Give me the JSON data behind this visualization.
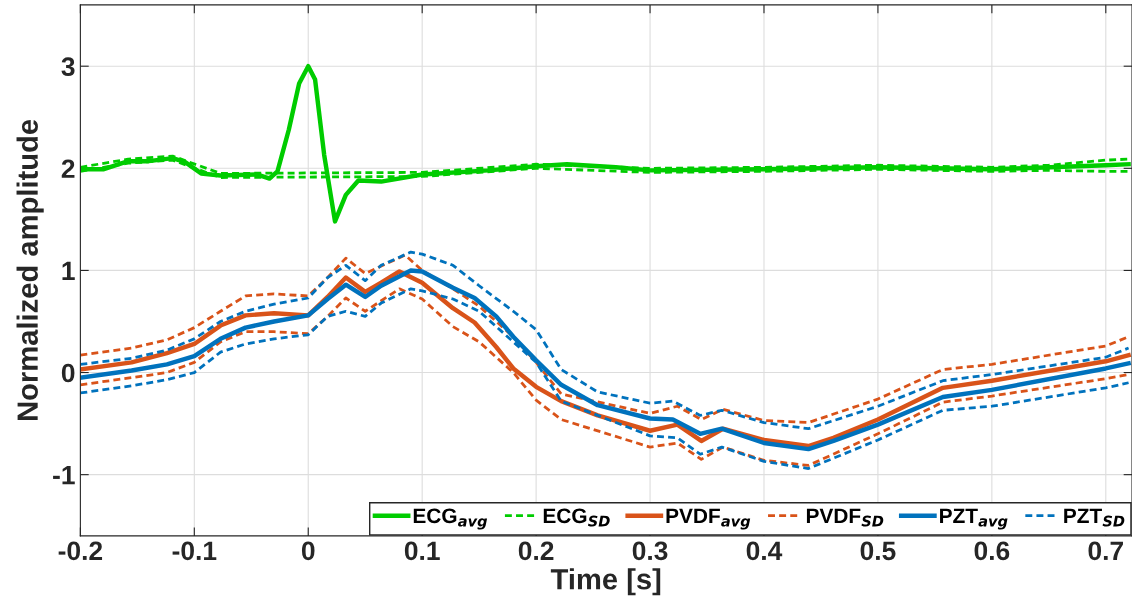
{
  "chart_data": {
    "type": "line",
    "xlabel": "Time [s]",
    "ylabel": "Normalized amplitude",
    "xlim": [
      -0.2,
      0.723
    ],
    "ylim": [
      -1.6,
      3.6
    ],
    "xticks": [
      {
        "value": -0.2,
        "label": "-0.2"
      },
      {
        "value": -0.1,
        "label": "-0.1"
      },
      0,
      0.1,
      0.2,
      0.3,
      0.4,
      0.5,
      0.6,
      0.7
    ],
    "yticks": [
      {
        "value": -1,
        "label": "-1"
      },
      0,
      1,
      2,
      3
    ],
    "grid": true,
    "legend": "bottom right",
    "marker": "none",
    "series": [
      {
        "name": "ECG$_{avg}$",
        "color": "#00cc00",
        "line_style": "solid",
        "x": [
          -0.2,
          -0.18,
          -0.158,
          -0.14,
          -0.119,
          -0.108,
          -0.094,
          -0.077,
          -0.045,
          -0.034,
          -0.027,
          -0.017,
          -0.008,
          0,
          0.006,
          0.014,
          0.0235,
          0.033,
          0.044,
          0.064,
          0.1,
          0.158,
          0.2,
          0.227,
          0.27,
          0.3,
          0.4,
          0.5,
          0.6,
          0.7,
          0.72
        ],
        "values": [
          1.99,
          1.99,
          2.07,
          2.07,
          2.1,
          2.06,
          1.95,
          1.93,
          1.94,
          1.9,
          1.97,
          2.38,
          2.83,
          3.0,
          2.87,
          2.13,
          1.48,
          1.74,
          1.88,
          1.87,
          1.94,
          1.98,
          2.02,
          2.04,
          2.01,
          1.98,
          1.99,
          2.01,
          1.99,
          2.03,
          2.04
        ]
      },
      {
        "name": "ECG$_{SD}$",
        "color": "#00cc00",
        "line_style": "dashed",
        "x": [
          -0.2,
          -0.158,
          -0.119,
          -0.077,
          0.1,
          0.2,
          0.3,
          0.4,
          0.5,
          0.6,
          0.65,
          0.7,
          0.72
        ],
        "values": [
          2.01,
          2.09,
          2.12,
          1.95,
          1.96,
          2.04,
          2.0,
          2.01,
          2.03,
          2.01,
          2.03,
          2.08,
          2.09
        ]
      },
      {
        "color": "#00cc00",
        "line_style": "dashed",
        "x": [
          -0.2,
          -0.158,
          -0.119,
          -0.077,
          0.1,
          0.2,
          0.3,
          0.4,
          0.5,
          0.6,
          0.65,
          0.7,
          0.72
        ],
        "values": [
          1.97,
          2.05,
          2.08,
          1.91,
          1.92,
          2.0,
          1.96,
          1.97,
          1.99,
          1.97,
          1.98,
          1.97,
          1.97
        ]
      },
      {
        "name": "PVDF$_{avg}$",
        "color": "#d95319",
        "line_style": "solid",
        "x": [
          -0.2,
          -0.155,
          -0.124,
          -0.1,
          -0.077,
          -0.055,
          -0.03,
          0,
          0.017,
          0.033,
          0.05,
          0.064,
          0.08,
          0.1,
          0.127,
          0.146,
          0.165,
          0.18,
          0.2,
          0.222,
          0.254,
          0.3,
          0.324,
          0.345,
          0.364,
          0.4,
          0.439,
          0.461,
          0.5,
          0.557,
          0.6,
          0.7,
          0.72
        ],
        "values": [
          0.03,
          0.1,
          0.19,
          0.28,
          0.46,
          0.56,
          0.58,
          0.56,
          0.74,
          0.93,
          0.79,
          0.88,
          0.99,
          0.88,
          0.63,
          0.49,
          0.25,
          0.04,
          -0.14,
          -0.28,
          -0.42,
          -0.57,
          -0.51,
          -0.67,
          -0.55,
          -0.66,
          -0.72,
          -0.64,
          -0.46,
          -0.15,
          -0.08,
          0.11,
          0.17
        ]
      },
      {
        "name": "PVDF$_{SD}$",
        "color": "#d95319",
        "line_style": "dashed",
        "x": [
          -0.2,
          -0.155,
          -0.124,
          -0.1,
          -0.077,
          -0.055,
          -0.03,
          0,
          0.017,
          0.033,
          0.05,
          0.085,
          0.1,
          0.127,
          0.15,
          0.18,
          0.2,
          0.222,
          0.3,
          0.324,
          0.345,
          0.364,
          0.4,
          0.439,
          0.5,
          0.557,
          0.6,
          0.7,
          0.72
        ],
        "values": [
          0.17,
          0.24,
          0.32,
          0.44,
          0.6,
          0.75,
          0.77,
          0.75,
          0.93,
          1.12,
          0.97,
          1.15,
          1.0,
          0.82,
          0.65,
          0.35,
          0.1,
          -0.21,
          -0.4,
          -0.33,
          -0.46,
          -0.36,
          -0.47,
          -0.49,
          -0.26,
          0.03,
          0.08,
          0.26,
          0.35
        ]
      },
      {
        "color": "#d95319",
        "line_style": "dashed",
        "x": [
          -0.2,
          -0.155,
          -0.124,
          -0.1,
          -0.077,
          -0.055,
          -0.03,
          0,
          0.017,
          0.033,
          0.05,
          0.08,
          0.1,
          0.127,
          0.15,
          0.18,
          0.2,
          0.222,
          0.3,
          0.324,
          0.345,
          0.364,
          0.4,
          0.439,
          0.5,
          0.557,
          0.6,
          0.7,
          0.72
        ],
        "values": [
          -0.12,
          -0.05,
          0.0,
          0.1,
          0.3,
          0.4,
          0.4,
          0.38,
          0.55,
          0.73,
          0.6,
          0.82,
          0.72,
          0.45,
          0.3,
          0.0,
          -0.27,
          -0.46,
          -0.73,
          -0.69,
          -0.85,
          -0.73,
          -0.86,
          -0.91,
          -0.6,
          -0.29,
          -0.23,
          -0.06,
          -0.02
        ]
      },
      {
        "name": "PZT$_{avg}$",
        "color": "#0072bd",
        "line_style": "solid",
        "x": [
          -0.2,
          -0.155,
          -0.124,
          -0.1,
          -0.077,
          -0.055,
          -0.03,
          0,
          0.017,
          0.033,
          0.05,
          0.064,
          0.09,
          0.1,
          0.127,
          0.146,
          0.165,
          0.18,
          0.2,
          0.222,
          0.254,
          0.3,
          0.32,
          0.344,
          0.363,
          0.4,
          0.439,
          0.461,
          0.5,
          0.557,
          0.6,
          0.7,
          0.72
        ],
        "values": [
          -0.05,
          0.02,
          0.08,
          0.16,
          0.33,
          0.44,
          0.5,
          0.56,
          0.72,
          0.86,
          0.74,
          0.85,
          1.0,
          0.99,
          0.83,
          0.73,
          0.55,
          0.35,
          0.12,
          -0.12,
          -0.32,
          -0.45,
          -0.46,
          -0.6,
          -0.55,
          -0.69,
          -0.75,
          -0.67,
          -0.51,
          -0.24,
          -0.17,
          0.04,
          0.09
        ]
      },
      {
        "name": "PZT$_{SD}$",
        "color": "#0072bd",
        "line_style": "dashed",
        "x": [
          -0.2,
          -0.155,
          -0.124,
          -0.1,
          -0.077,
          -0.055,
          -0.03,
          0,
          0.017,
          0.033,
          0.05,
          0.064,
          0.09,
          0.1,
          0.127,
          0.15,
          0.18,
          0.2,
          0.222,
          0.254,
          0.3,
          0.32,
          0.344,
          0.363,
          0.4,
          0.439,
          0.5,
          0.557,
          0.6,
          0.7,
          0.72
        ],
        "values": [
          0.08,
          0.14,
          0.22,
          0.33,
          0.5,
          0.6,
          0.67,
          0.73,
          0.93,
          1.05,
          0.9,
          1.05,
          1.18,
          1.16,
          1.05,
          0.85,
          0.6,
          0.42,
          0.03,
          -0.19,
          -0.3,
          -0.28,
          -0.42,
          -0.37,
          -0.49,
          -0.55,
          -0.33,
          -0.08,
          -0.02,
          0.15,
          0.24
        ]
      },
      {
        "color": "#0072bd",
        "line_style": "dashed",
        "x": [
          -0.2,
          -0.155,
          -0.124,
          -0.1,
          -0.077,
          -0.055,
          -0.03,
          0,
          0.017,
          0.033,
          0.05,
          0.064,
          0.09,
          0.1,
          0.127,
          0.15,
          0.18,
          0.2,
          0.222,
          0.3,
          0.324,
          0.344,
          0.363,
          0.4,
          0.439,
          0.5,
          0.557,
          0.6,
          0.7,
          0.72
        ],
        "values": [
          -0.2,
          -0.13,
          -0.07,
          0.0,
          0.2,
          0.28,
          0.33,
          0.37,
          0.55,
          0.6,
          0.55,
          0.68,
          0.82,
          0.8,
          0.72,
          0.6,
          0.3,
          0.1,
          -0.28,
          -0.62,
          -0.64,
          -0.8,
          -0.73,
          -0.87,
          -0.94,
          -0.66,
          -0.37,
          -0.33,
          -0.15,
          -0.1
        ]
      }
    ]
  }
}
